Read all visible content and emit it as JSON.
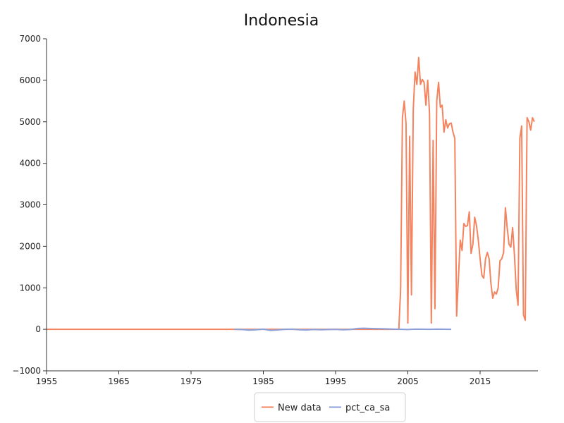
{
  "chart_data": {
    "type": "line",
    "title": "Indonesia",
    "xlabel": "",
    "ylabel": "",
    "xlim": [
      1955,
      2023
    ],
    "ylim": [
      -1000,
      7000
    ],
    "x_ticks": [
      1955,
      1965,
      1975,
      1985,
      1995,
      2005,
      2015
    ],
    "y_ticks": [
      -1000,
      0,
      1000,
      2000,
      3000,
      4000,
      5000,
      6000,
      7000
    ],
    "grid": false,
    "legend_position": "bottom-center",
    "series": [
      {
        "name": "New data",
        "color": "#f4845f",
        "points": [
          [
            1955,
            0
          ],
          [
            1975,
            0
          ],
          [
            2003.75,
            0
          ],
          [
            2004.0,
            950
          ],
          [
            2004.25,
            5100
          ],
          [
            2004.5,
            5500
          ],
          [
            2004.75,
            4950
          ],
          [
            2005.0,
            150
          ],
          [
            2005.25,
            4650
          ],
          [
            2005.5,
            830
          ],
          [
            2005.75,
            5300
          ],
          [
            2006.0,
            6200
          ],
          [
            2006.25,
            5900
          ],
          [
            2006.5,
            6550
          ],
          [
            2006.75,
            5900
          ],
          [
            2007.0,
            6020
          ],
          [
            2007.25,
            5950
          ],
          [
            2007.5,
            5400
          ],
          [
            2007.75,
            6000
          ],
          [
            2008.0,
            5200
          ],
          [
            2008.25,
            150
          ],
          [
            2008.5,
            4550
          ],
          [
            2008.75,
            500
          ],
          [
            2009.0,
            5500
          ],
          [
            2009.25,
            5950
          ],
          [
            2009.5,
            5350
          ],
          [
            2009.75,
            5400
          ],
          [
            2010.0,
            4750
          ],
          [
            2010.25,
            5050
          ],
          [
            2010.5,
            4850
          ],
          [
            2010.75,
            4950
          ],
          [
            2011.0,
            4970
          ],
          [
            2011.25,
            4750
          ],
          [
            2011.5,
            4600
          ],
          [
            2011.75,
            320
          ],
          [
            2012.25,
            2150
          ],
          [
            2012.5,
            1900
          ],
          [
            2012.75,
            2550
          ],
          [
            2013.0,
            2480
          ],
          [
            2013.25,
            2500
          ],
          [
            2013.5,
            2830
          ],
          [
            2013.75,
            1830
          ],
          [
            2014.0,
            2050
          ],
          [
            2014.25,
            2700
          ],
          [
            2014.5,
            2500
          ],
          [
            2014.75,
            2150
          ],
          [
            2015.0,
            1700
          ],
          [
            2015.25,
            1300
          ],
          [
            2015.5,
            1230
          ],
          [
            2015.75,
            1700
          ],
          [
            2016.0,
            1850
          ],
          [
            2016.25,
            1700
          ],
          [
            2016.5,
            1100
          ],
          [
            2016.75,
            750
          ],
          [
            2017.0,
            900
          ],
          [
            2017.25,
            850
          ],
          [
            2017.5,
            1000
          ],
          [
            2017.75,
            1650
          ],
          [
            2018.0,
            1700
          ],
          [
            2018.25,
            1850
          ],
          [
            2018.5,
            2930
          ],
          [
            2018.75,
            2450
          ],
          [
            2019.0,
            2050
          ],
          [
            2019.25,
            1980
          ],
          [
            2019.5,
            2450
          ],
          [
            2019.75,
            1800
          ],
          [
            2020.0,
            950
          ],
          [
            2020.25,
            580
          ],
          [
            2020.5,
            4600
          ],
          [
            2020.75,
            4900
          ],
          [
            2021.0,
            350
          ],
          [
            2021.25,
            220
          ],
          [
            2021.5,
            5100
          ],
          [
            2021.75,
            5000
          ],
          [
            2022.0,
            4800
          ],
          [
            2022.25,
            5100
          ],
          [
            2022.5,
            5000
          ]
        ]
      },
      {
        "name": "pct_ca_sa",
        "color": "#8c9fda",
        "points": [
          [
            1981,
            0
          ],
          [
            1982,
            -5
          ],
          [
            1983,
            -20
          ],
          [
            1984,
            -10
          ],
          [
            1985,
            5
          ],
          [
            1986,
            -25
          ],
          [
            1987,
            -15
          ],
          [
            1988,
            0
          ],
          [
            1989,
            5
          ],
          [
            1990,
            -10
          ],
          [
            1991,
            -15
          ],
          [
            1992,
            -5
          ],
          [
            1993,
            -10
          ],
          [
            1994,
            -5
          ],
          [
            1995,
            0
          ],
          [
            1996,
            -10
          ],
          [
            1997,
            -5
          ],
          [
            1998,
            20
          ],
          [
            1999,
            25
          ],
          [
            2000,
            20
          ],
          [
            2001,
            15
          ],
          [
            2002,
            10
          ],
          [
            2003,
            5
          ],
          [
            2004,
            0
          ],
          [
            2005,
            -5
          ],
          [
            2006,
            5
          ],
          [
            2007,
            3
          ],
          [
            2008,
            0
          ],
          [
            2009,
            5
          ],
          [
            2010,
            2
          ],
          [
            2011,
            0
          ]
        ]
      }
    ]
  }
}
